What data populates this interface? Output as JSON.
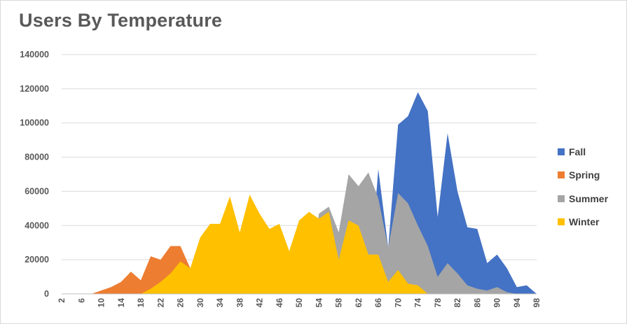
{
  "chart_data": {
    "type": "area",
    "title": "Users By Temperature",
    "xlabel": "",
    "ylabel": "",
    "ylim": [
      0,
      140000
    ],
    "yticks": [
      0,
      20000,
      40000,
      60000,
      80000,
      100000,
      120000,
      140000
    ],
    "ytick_labels": [
      "0",
      "20000",
      "40000",
      "60000",
      "80000",
      "100000",
      "120000",
      "140000"
    ],
    "xticks": [
      2,
      6,
      10,
      14,
      18,
      22,
      26,
      30,
      34,
      38,
      42,
      46,
      50,
      54,
      58,
      62,
      66,
      70,
      74,
      78,
      82,
      86,
      90,
      94,
      98
    ],
    "xtick_labels": [
      "2",
      "6",
      "10",
      "14",
      "18",
      "22",
      "26",
      "30",
      "34",
      "38",
      "42",
      "46",
      "50",
      "54",
      "58",
      "62",
      "66",
      "70",
      "74",
      "78",
      "82",
      "86",
      "90",
      "94",
      "98"
    ],
    "grid": true,
    "legend_position": "right",
    "x": [
      2,
      4,
      6,
      8,
      10,
      12,
      14,
      16,
      18,
      20,
      22,
      24,
      26,
      28,
      30,
      32,
      34,
      36,
      38,
      40,
      42,
      44,
      46,
      48,
      50,
      52,
      54,
      56,
      58,
      60,
      62,
      64,
      66,
      68,
      70,
      72,
      74,
      76,
      78,
      80,
      82,
      84,
      86,
      88,
      90,
      92,
      94,
      96,
      98
    ],
    "series": [
      {
        "name": "Fall",
        "color": "#4472C4",
        "values": [
          0,
          0,
          0,
          0,
          0,
          0,
          0,
          0,
          0,
          0,
          0,
          0,
          0,
          0,
          0,
          0,
          0,
          0,
          0,
          0,
          0,
          0,
          0,
          0,
          0,
          0,
          0,
          0,
          0,
          0,
          0,
          0,
          73000,
          27000,
          99000,
          104000,
          118000,
          107000,
          45000,
          94000,
          60000,
          39000,
          38000,
          18000,
          23000,
          15000,
          4000,
          5000,
          0
        ]
      },
      {
        "name": "Spring",
        "color": "#ED7D31",
        "values": [
          0,
          0,
          0,
          0,
          2000,
          4000,
          7000,
          13000,
          8000,
          22000,
          20000,
          28000,
          28000,
          15000,
          0,
          0,
          0,
          0,
          0,
          0,
          0,
          0,
          0,
          0,
          0,
          0,
          0,
          0,
          0,
          0,
          0,
          0,
          0,
          0,
          0,
          0,
          0,
          0,
          0,
          0,
          0,
          0,
          0,
          0,
          0,
          0,
          0,
          0,
          0
        ]
      },
      {
        "name": "Summer",
        "color": "#A5A5A5",
        "values": [
          0,
          0,
          0,
          0,
          0,
          0,
          0,
          0,
          0,
          0,
          0,
          0,
          0,
          0,
          0,
          0,
          0,
          0,
          0,
          0,
          0,
          0,
          0,
          0,
          0,
          0,
          47000,
          51000,
          36000,
          70000,
          63000,
          71000,
          56000,
          27000,
          59000,
          53000,
          40000,
          28000,
          10000,
          18000,
          12000,
          5000,
          3000,
          2000,
          4000,
          1000,
          0,
          0,
          0
        ]
      },
      {
        "name": "Winter",
        "color": "#FFC000",
        "values": [
          0,
          0,
          0,
          0,
          0,
          0,
          0,
          0,
          0,
          3000,
          7000,
          12000,
          19000,
          15000,
          33000,
          41000,
          41000,
          57000,
          36000,
          58000,
          47000,
          38000,
          41000,
          25000,
          43000,
          48000,
          44000,
          48000,
          20000,
          43000,
          40000,
          23000,
          23000,
          7000,
          14000,
          6000,
          5000,
          0,
          0,
          0,
          0,
          0,
          0,
          0,
          0,
          0,
          0,
          0,
          0
        ]
      }
    ]
  }
}
